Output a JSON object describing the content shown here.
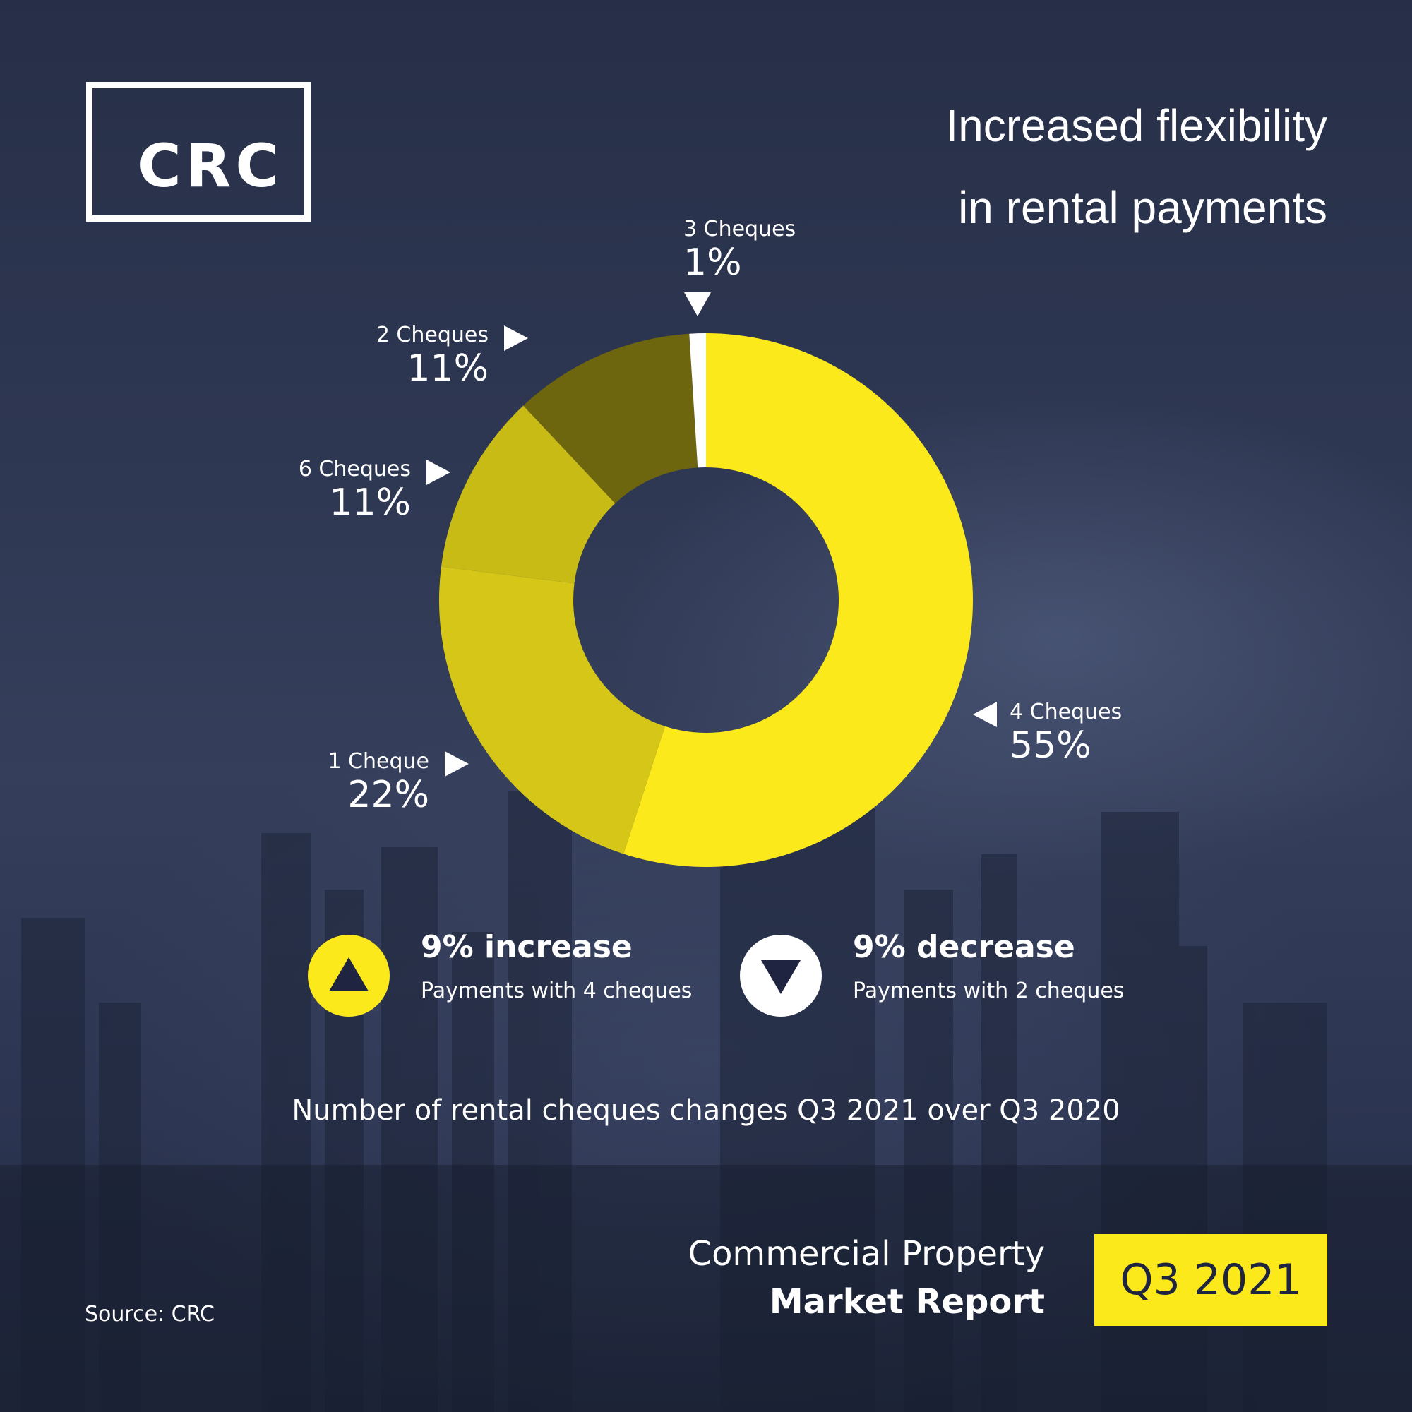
{
  "logo": {
    "text": "CRC"
  },
  "title": {
    "line1": "Increased flexibility",
    "line2": "in rental payments"
  },
  "chart_data": {
    "type": "pie",
    "style": "donut",
    "slices": [
      {
        "label": "4 Cheques",
        "value": 55,
        "value_label": "55%",
        "color": "#fbe91c"
      },
      {
        "label": "1 Cheque",
        "value": 22,
        "value_label": "22%",
        "color": "#d5c618"
      },
      {
        "label": "6 Cheques",
        "value": 11,
        "value_label": "11%",
        "color": "#c8bb16"
      },
      {
        "label": "2 Cheques",
        "value": 11,
        "value_label": "11%",
        "color": "#6e650f"
      },
      {
        "label": "3 Cheques",
        "value": 1,
        "value_label": "1%",
        "color": "#ffffff"
      }
    ]
  },
  "stats": [
    {
      "headline": "9% increase",
      "subtitle": "Payments with 4 cheques",
      "direction": "up",
      "icon": "up-triangle-icon",
      "circle_color": "#fbe91c"
    },
    {
      "headline": "9% decrease",
      "subtitle": "Payments with 2 cheques",
      "direction": "down",
      "icon": "down-triangle-icon",
      "circle_color": "#ffffff"
    }
  ],
  "caption": "Number of rental cheques changes Q3 2021 over Q3 2020",
  "report": {
    "line1": "Commercial Property",
    "line2": "Market Report",
    "badge": "Q3 2021"
  },
  "source": "Source: CRC",
  "colors": {
    "accent": "#fbe91c",
    "background": "#2a3350",
    "text": "#ffffff"
  }
}
